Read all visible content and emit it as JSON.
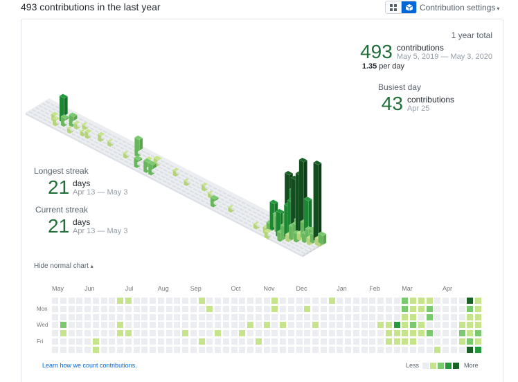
{
  "header": {
    "title": "493 contributions in the last year",
    "settings_label": "Contribution settings",
    "caret": "▾",
    "view_toggle": [
      {
        "name": "grid-view",
        "icon": "grid-icon",
        "active": false
      },
      {
        "name": "isometric-view",
        "icon": "cube-icon",
        "active": true
      }
    ]
  },
  "stats": {
    "total_label": "1 year total",
    "total_value": "493",
    "total_unit": "contributions",
    "total_range": "May 5, 2019 — May 3, 2020",
    "per_day_value": "1.35",
    "per_day_suffix": " per day",
    "busiest_label": "Busiest day",
    "busiest_value": "43",
    "busiest_unit": "contributions",
    "busiest_date": "Apr 25",
    "longest_label": "Longest streak",
    "longest_value": "21",
    "longest_unit": "days",
    "longest_range": "Apr 13 — May 3",
    "current_label": "Current streak",
    "current_value": "21",
    "current_unit": "days",
    "current_range": "Apr 13 — May 3"
  },
  "hide_chart": {
    "label": "Hide normal chart",
    "caret": "▴"
  },
  "calendar": {
    "months": [
      {
        "label": "May",
        "week": 0
      },
      {
        "label": "Jun",
        "week": 4
      },
      {
        "label": "Jul",
        "week": 9
      },
      {
        "label": "Aug",
        "week": 13
      },
      {
        "label": "Sep",
        "week": 17
      },
      {
        "label": "Oct",
        "week": 22
      },
      {
        "label": "Nov",
        "week": 26
      },
      {
        "label": "Dec",
        "week": 30
      },
      {
        "label": "Jan",
        "week": 35
      },
      {
        "label": "Feb",
        "week": 39
      },
      {
        "label": "Mar",
        "week": 43
      },
      {
        "label": "Apr",
        "week": 48
      }
    ],
    "day_labels": [
      {
        "label": "Mon",
        "row": 1
      },
      {
        "label": "Wed",
        "row": 3
      },
      {
        "label": "Fri",
        "row": 5
      }
    ],
    "weeks": 53,
    "level_colors": [
      "#ebedf0",
      "#c6e48b",
      "#7bc96f",
      "#239a3b",
      "#196127"
    ],
    "active_cells": [
      [
        1,
        3,
        2
      ],
      [
        1,
        4,
        1
      ],
      [
        5,
        5,
        1
      ],
      [
        5,
        6,
        1
      ],
      [
        8,
        0,
        1
      ],
      [
        8,
        3,
        1
      ],
      [
        8,
        4,
        1
      ],
      [
        9,
        0,
        1
      ],
      [
        9,
        4,
        1
      ],
      [
        16,
        4,
        1
      ],
      [
        18,
        0,
        1
      ],
      [
        18,
        5,
        1
      ],
      [
        19,
        1,
        1
      ],
      [
        20,
        4,
        1
      ],
      [
        23,
        4,
        1
      ],
      [
        24,
        3,
        1
      ],
      [
        25,
        5,
        1
      ],
      [
        26,
        3,
        1
      ],
      [
        27,
        0,
        1
      ],
      [
        27,
        1,
        1
      ],
      [
        28,
        3,
        1
      ],
      [
        31,
        1,
        1
      ],
      [
        32,
        3,
        1
      ],
      [
        34,
        0,
        1
      ],
      [
        40,
        3,
        1
      ],
      [
        41,
        3,
        1
      ],
      [
        41,
        4,
        1
      ],
      [
        41,
        5,
        1
      ],
      [
        42,
        3,
        3
      ],
      [
        42,
        4,
        1
      ],
      [
        42,
        5,
        1
      ],
      [
        43,
        0,
        2
      ],
      [
        43,
        1,
        2
      ],
      [
        43,
        2,
        1
      ],
      [
        43,
        3,
        1
      ],
      [
        43,
        4,
        1
      ],
      [
        43,
        5,
        1
      ],
      [
        44,
        0,
        1
      ],
      [
        44,
        1,
        1
      ],
      [
        44,
        2,
        1
      ],
      [
        44,
        3,
        2
      ],
      [
        44,
        4,
        1
      ],
      [
        44,
        5,
        1
      ],
      [
        45,
        0,
        1
      ],
      [
        45,
        1,
        1
      ],
      [
        45,
        3,
        1
      ],
      [
        45,
        4,
        1
      ],
      [
        46,
        0,
        1
      ],
      [
        46,
        1,
        2
      ],
      [
        46,
        2,
        2
      ],
      [
        46,
        4,
        2
      ],
      [
        47,
        6,
        1
      ],
      [
        50,
        3,
        1
      ],
      [
        50,
        4,
        2
      ],
      [
        50,
        5,
        1
      ],
      [
        51,
        0,
        4
      ],
      [
        51,
        1,
        2
      ],
      [
        51,
        2,
        1
      ],
      [
        51,
        3,
        1
      ],
      [
        51,
        4,
        1
      ],
      [
        51,
        5,
        2
      ],
      [
        51,
        6,
        4
      ],
      [
        52,
        0,
        1
      ],
      [
        52,
        1,
        1
      ],
      [
        52,
        2,
        1
      ],
      [
        52,
        3,
        1
      ],
      [
        52,
        4,
        2
      ],
      [
        52,
        5,
        1
      ],
      [
        52,
        6,
        3
      ],
      [
        53,
        0,
        1
      ],
      [
        53,
        1,
        1
      ],
      [
        53,
        2,
        2
      ],
      [
        53,
        3,
        2
      ],
      [
        53,
        4,
        1
      ],
      [
        53,
        5,
        3
      ],
      [
        53,
        6,
        4
      ],
      [
        54,
        0,
        1
      ]
    ]
  },
  "iso_bars": [
    [
      5,
      3,
      20
    ],
    [
      4,
      4,
      4
    ],
    [
      5,
      5,
      4
    ],
    [
      6,
      4,
      6
    ],
    [
      7,
      3,
      8
    ],
    [
      8,
      3,
      3
    ],
    [
      8,
      5,
      2
    ],
    [
      9,
      2,
      2
    ],
    [
      10,
      4,
      2
    ],
    [
      11,
      4,
      4
    ],
    [
      13,
      3,
      4
    ],
    [
      15,
      3,
      2
    ],
    [
      19,
      4,
      2
    ],
    [
      20,
      2,
      14
    ],
    [
      22,
      5,
      6
    ],
    [
      23,
      3,
      4
    ],
    [
      24,
      5,
      8
    ],
    [
      25,
      5,
      8
    ],
    [
      24,
      2,
      5
    ],
    [
      28,
      2,
      3
    ],
    [
      31,
      3,
      2
    ],
    [
      34,
      2,
      3
    ],
    [
      36,
      3,
      2
    ],
    [
      38,
      5,
      6
    ],
    [
      41,
      4,
      2
    ],
    [
      47,
      5,
      2
    ],
    [
      49,
      2,
      10
    ],
    [
      49,
      3,
      22
    ],
    [
      49,
      4,
      6
    ],
    [
      49,
      5,
      4
    ],
    [
      50,
      0,
      44
    ],
    [
      50,
      1,
      6
    ],
    [
      50,
      3,
      12
    ],
    [
      50,
      6,
      4
    ],
    [
      51,
      0,
      32
    ],
    [
      51,
      1,
      8
    ],
    [
      51,
      2,
      14
    ],
    [
      51,
      4,
      20
    ],
    [
      52,
      0,
      8
    ],
    [
      52,
      1,
      46
    ],
    [
      52,
      2,
      28
    ],
    [
      52,
      3,
      26
    ],
    [
      52,
      4,
      10
    ],
    [
      52,
      5,
      6
    ],
    [
      53,
      0,
      62
    ],
    [
      53,
      1,
      52
    ],
    [
      53,
      2,
      10
    ],
    [
      53,
      3,
      10
    ],
    [
      53,
      4,
      4
    ],
    [
      54,
      0,
      30
    ],
    [
      54,
      1,
      12
    ],
    [
      54,
      2,
      4
    ],
    [
      54,
      3,
      6
    ],
    [
      55,
      0,
      6
    ],
    [
      55,
      1,
      8
    ],
    [
      55,
      2,
      6
    ],
    [
      56,
      0,
      66
    ],
    [
      56,
      1,
      6
    ],
    [
      56,
      2,
      4
    ],
    [
      57,
      0,
      6
    ],
    [
      57,
      1,
      4
    ]
  ],
  "footer": {
    "learn_label": "Learn how we count contributions.",
    "less_label": "Less",
    "more_label": "More"
  }
}
